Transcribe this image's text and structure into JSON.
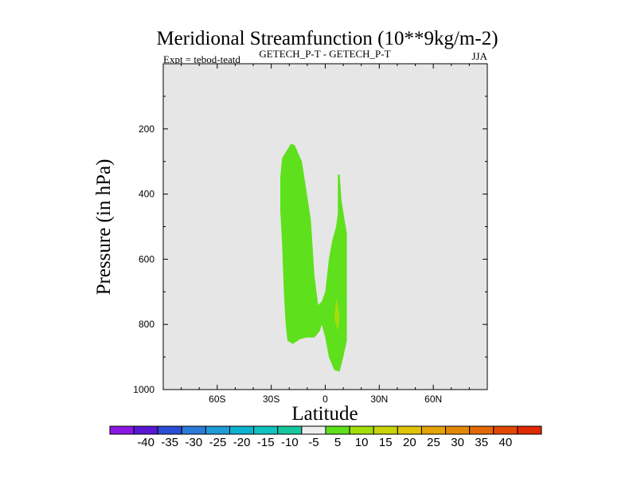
{
  "chart_data": {
    "type": "contour",
    "title": "Meridional Streamfunction (10**9kg/m-2)",
    "subtitle_left": "Expt = tebod-teatd",
    "subtitle_center": "GETECH_P-T - GETECH_P-T",
    "subtitle_right": "JJA",
    "xlabel": "Latitude",
    "ylabel": "Pressure (in hPa)",
    "xlim": [
      -90,
      90
    ],
    "ylim": [
      1000,
      0
    ],
    "x_ticks": [
      {
        "value": -60,
        "label": "60S"
      },
      {
        "value": -30,
        "label": "30S"
      },
      {
        "value": 0,
        "label": "0"
      },
      {
        "value": 30,
        "label": "30N"
      },
      {
        "value": 60,
        "label": "60N"
      }
    ],
    "y_ticks": [
      {
        "value": 200,
        "label": "200"
      },
      {
        "value": 400,
        "label": "400"
      },
      {
        "value": 600,
        "label": "600"
      },
      {
        "value": 800,
        "label": "800"
      },
      {
        "value": 1000,
        "label": "1000"
      }
    ],
    "background_color": "#e6e6e6",
    "regions": [
      {
        "name": "positive-5-10-region",
        "level_range": [
          5,
          10
        ],
        "color": "#5ee01c",
        "points": [
          [
            -25,
            350
          ],
          [
            -24,
            290
          ],
          [
            -19,
            245
          ],
          [
            -17,
            250
          ],
          [
            -13,
            300
          ],
          [
            -11,
            370
          ],
          [
            -8,
            480
          ],
          [
            -6,
            650
          ],
          [
            -4,
            740
          ],
          [
            -2,
            730
          ],
          [
            0,
            700
          ],
          [
            2,
            600
          ],
          [
            4,
            540
          ],
          [
            6,
            500
          ],
          [
            7,
            460
          ],
          [
            7,
            340
          ],
          [
            8,
            340
          ],
          [
            9,
            420
          ],
          [
            11,
            490
          ],
          [
            12,
            520
          ],
          [
            12,
            650
          ],
          [
            12,
            850
          ],
          [
            10,
            900
          ],
          [
            8,
            945
          ],
          [
            5,
            940
          ],
          [
            2,
            900
          ],
          [
            0,
            840
          ],
          [
            -2,
            800
          ],
          [
            -3,
            820
          ],
          [
            -6,
            840
          ],
          [
            -10,
            840
          ],
          [
            -14,
            845
          ],
          [
            -18,
            860
          ],
          [
            -21,
            850
          ],
          [
            -22,
            800
          ],
          [
            -23,
            700
          ],
          [
            -24,
            550
          ],
          [
            -25,
            450
          ]
        ]
      },
      {
        "name": "positive-10-15-region",
        "level_range": [
          10,
          15
        ],
        "color": "#a5dd0b",
        "points": [
          [
            6,
            720
          ],
          [
            7,
            740
          ],
          [
            8,
            780
          ],
          [
            7,
            820
          ],
          [
            6,
            800
          ],
          [
            5,
            780
          ]
        ]
      }
    ],
    "colorbar": {
      "colors": [
        "#8b17e4",
        "#5a16d5",
        "#2a4ed6",
        "#2c7ad9",
        "#1e9bd8",
        "#0bb3d2",
        "#12c3c0",
        "#17c79f",
        "#eeeeee",
        "#5ee01c",
        "#a5dd0b",
        "#c8d30a",
        "#e1c308",
        "#e4a307",
        "#e28806",
        "#e36a05",
        "#e34704",
        "#e02a03"
      ],
      "labels": [
        "-40",
        "-35",
        "-30",
        "-25",
        "-20",
        "-15",
        "-10",
        "-5",
        "5",
        "10",
        "15",
        "20",
        "25",
        "30",
        "35",
        "40"
      ]
    }
  }
}
